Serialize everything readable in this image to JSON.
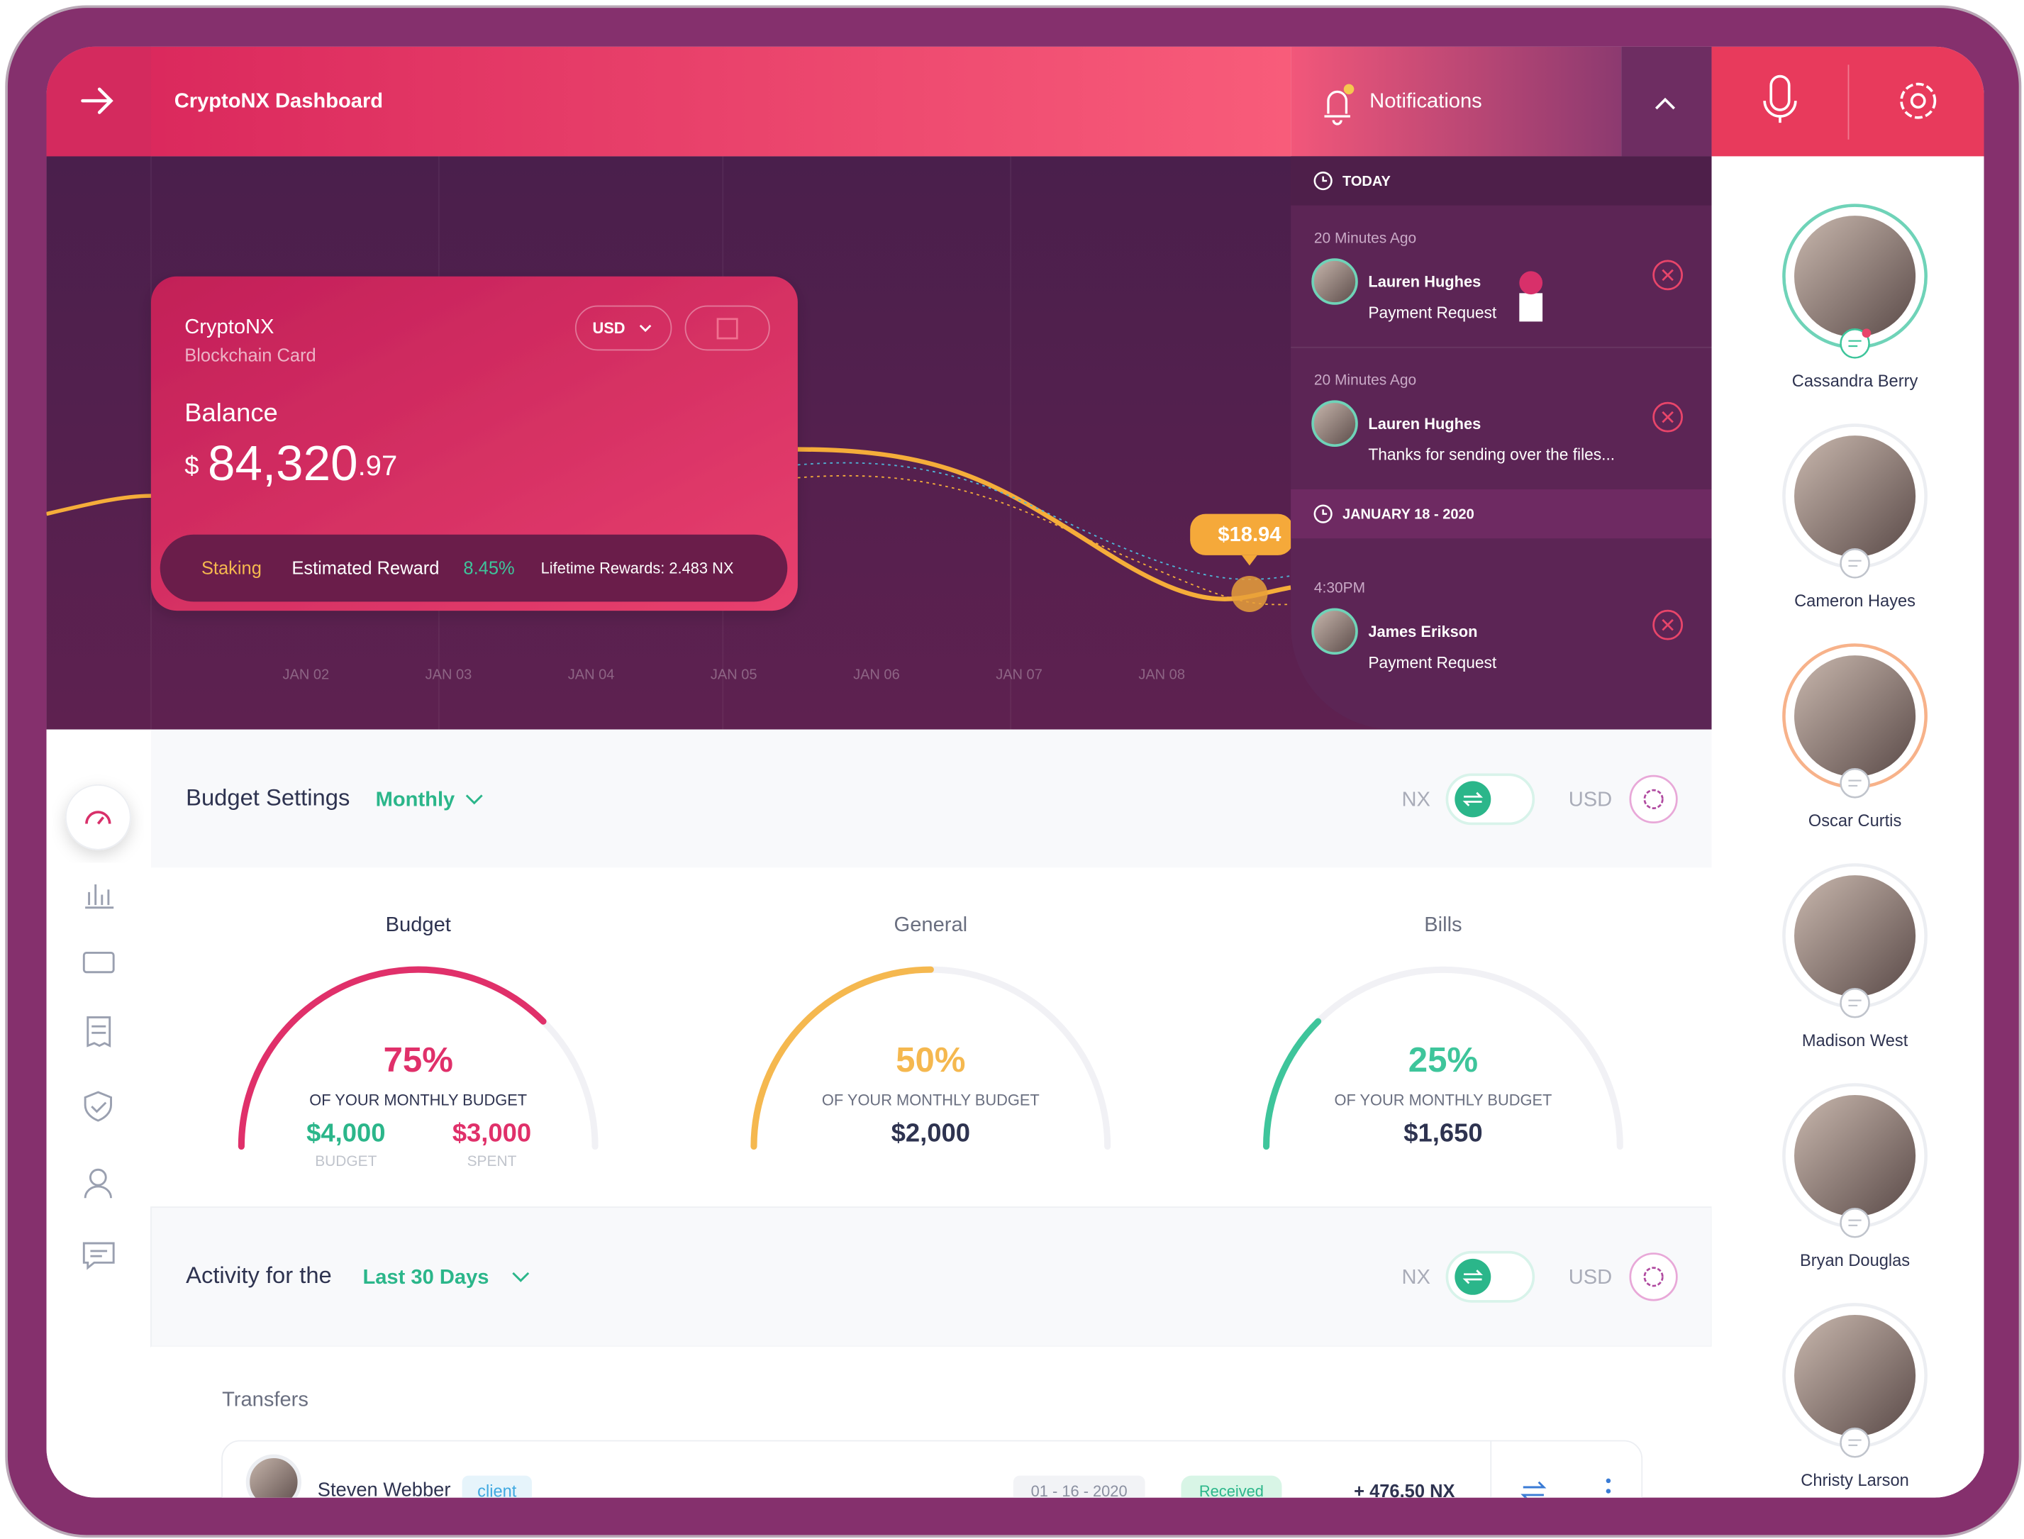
{
  "header": {
    "title": "CryptoNX Dashboard"
  },
  "notifications": {
    "title": "Notifications",
    "groups": [
      {
        "label": "TODAY",
        "items": [
          {
            "time": "20 Minutes Ago",
            "name": "Lauren Hughes",
            "text": "Payment Request"
          },
          {
            "time": "20 Minutes Ago",
            "name": "Lauren Hughes",
            "text": "Thanks for sending over the files..."
          }
        ]
      },
      {
        "label": "JANUARY 18 - 2020",
        "items": [
          {
            "time": "4:30PM",
            "name": "James Erikson",
            "text": "Payment Request"
          }
        ]
      }
    ]
  },
  "card": {
    "name": "CryptoNX",
    "subtitle": "Blockchain Card",
    "currency": "USD",
    "balance_label": "Balance",
    "currency_symbol": "$",
    "balance_main": "84,320",
    "balance_cents": ".97",
    "staking": "Staking",
    "reward_label": "Estimated Reward",
    "reward": "8.45%",
    "lifetime": "Lifetime Rewards: 2.483 NX"
  },
  "chart": {
    "dates": [
      "JAN 02",
      "JAN 03",
      "JAN 04",
      "JAN 05",
      "JAN 06",
      "JAN 07",
      "JAN 08"
    ],
    "price_tag": "$18.94"
  },
  "budget": {
    "title": "Budget Settings",
    "period": "Monthly",
    "toggle_left": "NX",
    "toggle_right": "USD",
    "gauges": [
      {
        "title": "Budget",
        "value": 75,
        "value_label": "75%",
        "color": "#e0306a",
        "caption": "OF YOUR MONTHLY BUDGET",
        "amounts": [
          {
            "value": "$4,000",
            "label": "BUDGET"
          },
          {
            "value": "$3,000",
            "label": "SPENT"
          }
        ]
      },
      {
        "title": "General",
        "value": 50,
        "value_label": "50%",
        "color": "#f5b84f",
        "caption": "OF YOUR MONTHLY BUDGET",
        "amounts": [
          {
            "value": "$2,000"
          }
        ]
      },
      {
        "title": "Bills",
        "value": 25,
        "value_label": "25%",
        "color": "#3ec59b",
        "caption": "OF YOUR MONTHLY BUDGET",
        "amounts": [
          {
            "value": "$1,650"
          }
        ]
      }
    ]
  },
  "activity": {
    "title": "Activity for the",
    "period": "Last 30 Days",
    "toggle_left": "NX",
    "toggle_right": "USD"
  },
  "transfers": {
    "title": "Transfers",
    "rows": [
      {
        "name": "Steven Webber",
        "tag": "client",
        "date": "01 - 16 - 2020",
        "status": "Received",
        "amount": "+ 476.50 NX"
      }
    ]
  },
  "contacts": [
    "Cassandra Berry",
    "Cameron Hayes",
    "Oscar Curtis",
    "Madison West",
    "Bryan Douglas",
    "Christy Larson"
  ]
}
